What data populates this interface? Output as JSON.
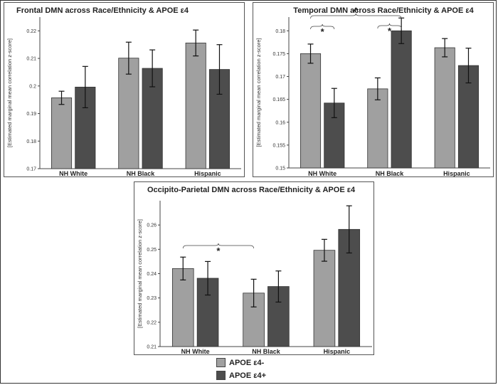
{
  "chart_data": [
    {
      "type": "bar",
      "title": "Frontal DMN across Race/Ethnicity & APOE ε4",
      "ylabel": "[Estimated marginal mean correlation z-score]",
      "categories": [
        "NH White",
        "NH Black",
        "Hispanic"
      ],
      "ylim": [
        0.17,
        0.225
      ],
      "yticks": [
        "0.17",
        "0.18",
        "0.19",
        "0.2",
        "0.21",
        "0.22"
      ],
      "ytick_values": [
        0.17,
        0.18,
        0.19,
        0.2,
        0.21,
        0.22
      ],
      "series": [
        {
          "name": "APOE ε4-",
          "values": [
            0.1957,
            0.2101,
            0.2156
          ],
          "errors": [
            0.0024,
            0.0058,
            0.0047
          ]
        },
        {
          "name": "APOE ε4+",
          "values": [
            0.1996,
            0.2064,
            0.206
          ],
          "errors": [
            0.0075,
            0.0067,
            0.009
          ]
        }
      ],
      "annotations": []
    },
    {
      "type": "bar",
      "title": "Temporal DMN across Race/Ethnicity & APOE ε4",
      "ylabel": "[Estimated marginal mean correlation z-score]",
      "categories": [
        "NH White",
        "NH Black",
        "Hispanic"
      ],
      "ylim": [
        0.15,
        0.183
      ],
      "yticks": [
        "0.15",
        "0.155",
        "0.16",
        "0.165",
        "0.17",
        "0.175",
        "0.18"
      ],
      "ytick_values": [
        0.15,
        0.155,
        0.16,
        0.165,
        0.17,
        0.175,
        0.18
      ],
      "series": [
        {
          "name": "APOE ε4-",
          "values": [
            0.175,
            0.1673,
            0.1763
          ],
          "errors": [
            0.0021,
            0.0024,
            0.002
          ]
        },
        {
          "name": "APOE ε4+",
          "values": [
            0.1642,
            0.18,
            0.1724
          ],
          "errors": [
            0.0032,
            0.0028,
            0.0038
          ]
        }
      ],
      "annotations": [
        {
          "symbol": "*",
          "from": [
            0,
            0
          ],
          "to": [
            0,
            1
          ]
        },
        {
          "symbol": "*",
          "from": [
            1,
            0
          ],
          "to": [
            1,
            1
          ]
        },
        {
          "symbol": "^",
          "from": [
            0,
            0
          ],
          "to": [
            1,
            1
          ]
        }
      ]
    },
    {
      "type": "bar",
      "title": "Occipito-Parietal DMN across Race/Ethnicity & APOE ε4",
      "ylabel": "[Estimated marginal mean correlation z-score]",
      "categories": [
        "NH White",
        "NH Black",
        "Hispanic"
      ],
      "ylim": [
        0.21,
        0.27
      ],
      "yticks": [
        "0.21",
        "0.22",
        "0.23",
        "0.24",
        "0.25",
        "0.26"
      ],
      "ytick_values": [
        0.21,
        0.22,
        0.23,
        0.24,
        0.25,
        0.26
      ],
      "series": [
        {
          "name": "APOE ε4-",
          "values": [
            0.2421,
            0.232,
            0.2496
          ],
          "errors": [
            0.0047,
            0.0057,
            0.0045
          ]
        },
        {
          "name": "APOE ε4+",
          "values": [
            0.2381,
            0.2347,
            0.2582
          ],
          "errors": [
            0.0069,
            0.0064,
            0.0097
          ]
        }
      ],
      "annotations": [
        {
          "symbol": "*",
          "from": [
            0,
            0
          ],
          "to": [
            1,
            0
          ]
        }
      ]
    }
  ],
  "colors": {
    "apoe_neg": "#a0a0a0",
    "apoe_pos": "#4d4d4d",
    "frame": "#333333"
  },
  "legend": [
    {
      "label": "APOE ε4-",
      "color": "#a0a0a0"
    },
    {
      "label": "APOE ε4+",
      "color": "#4d4d4d"
    }
  ]
}
